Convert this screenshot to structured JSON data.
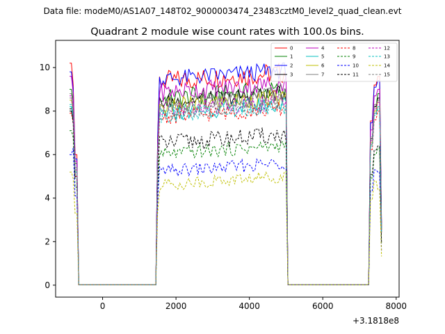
{
  "suptitle": "Data file: modeM0/AS1A07_148T02_9000003474_23483cztM0_level2_quad_clean.evt",
  "chart_data": {
    "type": "line",
    "title": "Quadrant 2 module wise count rates with 100.0s bins.",
    "xlabel": "",
    "ylabel": "",
    "x_offset_text": "+3.1818e8",
    "xlim": [
      -1280,
      8080
    ],
    "ylim": [
      -0.55,
      11.25
    ],
    "x_ticks": [
      0,
      2000,
      4000,
      6000,
      8000
    ],
    "x_tick_labels": [
      "0",
      "2000",
      "4000",
      "6000",
      "8000"
    ],
    "y_ticks": [
      0,
      2,
      4,
      6,
      8,
      10
    ],
    "y_tick_labels": [
      "0",
      "2",
      "4",
      "6",
      "8",
      "10"
    ],
    "grid": false,
    "legend_placement": "upper right",
    "gti_segments": [
      {
        "start": -900,
        "end": -700
      },
      {
        "start": 1450,
        "end": 5000
      },
      {
        "start": 7250,
        "end": 7550
      }
    ],
    "series": [
      {
        "name": "0",
        "color": "#ff0000",
        "dash": "solid",
        "a": [
          10.2,
          9.2,
          6.0
        ],
        "b": 9.35,
        "amp": 0.5,
        "c": [
          9.2,
          9.6
        ]
      },
      {
        "name": "1",
        "color": "#008000",
        "dash": "solid",
        "a": [
          9.0,
          8.5,
          5.6
        ],
        "b": 8.55,
        "amp": 0.45,
        "c": [
          8.2,
          8.8
        ]
      },
      {
        "name": "2",
        "color": "#0000ff",
        "dash": "solid",
        "a": [
          9.8,
          9.0,
          5.8
        ],
        "b": 9.45,
        "amp": 0.4,
        "c": [
          9.1,
          9.4
        ]
      },
      {
        "name": "3",
        "color": "#000000",
        "dash": "solid",
        "a": [
          8.0,
          7.6,
          5.0
        ],
        "b": 8.4,
        "amp": 0.35,
        "c": [
          8.2,
          8.6
        ]
      },
      {
        "name": "4",
        "color": "#bf00bf",
        "dash": "solid",
        "a": [
          9.6,
          8.8,
          5.7
        ],
        "b": 8.85,
        "amp": 0.45,
        "c": [
          8.7,
          9.0
        ]
      },
      {
        "name": "5",
        "color": "#00bfbf",
        "dash": "solid",
        "a": [
          8.2,
          7.8,
          5.2
        ],
        "b": 7.9,
        "amp": 0.4,
        "c": [
          7.9,
          8.2
        ]
      },
      {
        "name": "6",
        "color": "#bfbf00",
        "dash": "solid",
        "a": [
          8.5,
          8.0,
          5.3
        ],
        "b": 8.2,
        "amp": 0.4,
        "c": [
          8.0,
          8.5
        ]
      },
      {
        "name": "7",
        "color": "#808080",
        "dash": "solid",
        "a": [
          8.8,
          8.2,
          5.4
        ],
        "b": 8.3,
        "amp": 0.4,
        "c": [
          8.3,
          8.5
        ]
      },
      {
        "name": "8",
        "color": "#ff0000",
        "dash": "dashed",
        "a": [
          7.9,
          7.5,
          5.0
        ],
        "b": 7.7,
        "amp": 0.35,
        "c": [
          7.6,
          8.0
        ]
      },
      {
        "name": "9",
        "color": "#008000",
        "dash": "dashed",
        "a": [
          7.1,
          6.8,
          4.5
        ],
        "b": 6.0,
        "amp": 0.3,
        "c": [
          6.0,
          6.3
        ]
      },
      {
        "name": "10",
        "color": "#0000ff",
        "dash": "dashed",
        "a": [
          6.0,
          6.3,
          4.1
        ],
        "b": 5.2,
        "amp": 0.3,
        "c": [
          5.3,
          5.2
        ]
      },
      {
        "name": "11",
        "color": "#000000",
        "dash": "dashed",
        "a": [
          8.1,
          7.4,
          4.9
        ],
        "b": 6.5,
        "amp": 0.4,
        "c": [
          6.2,
          6.4
        ]
      },
      {
        "name": "12",
        "color": "#bf00bf",
        "dash": "dashed",
        "a": [
          8.7,
          8.1,
          5.3
        ],
        "b": 8.0,
        "amp": 0.4,
        "c": [
          8.1,
          8.4
        ]
      },
      {
        "name": "13",
        "color": "#00bfbf",
        "dash": "dashed",
        "a": [
          8.3,
          7.9,
          5.2
        ],
        "b": 7.8,
        "amp": 0.35,
        "c": [
          7.8,
          8.1
        ]
      },
      {
        "name": "14",
        "color": "#bfbf00",
        "dash": "dashed",
        "a": [
          5.2,
          4.9,
          3.3
        ],
        "b": 4.6,
        "amp": 0.3,
        "c": [
          4.8,
          4.4
        ]
      },
      {
        "name": "15",
        "color": "#808080",
        "dash": "dashed",
        "a": [
          8.6,
          8.0,
          5.3
        ],
        "b": 7.9,
        "amp": 0.35,
        "c": [
          7.9,
          8.2
        ]
      }
    ]
  }
}
